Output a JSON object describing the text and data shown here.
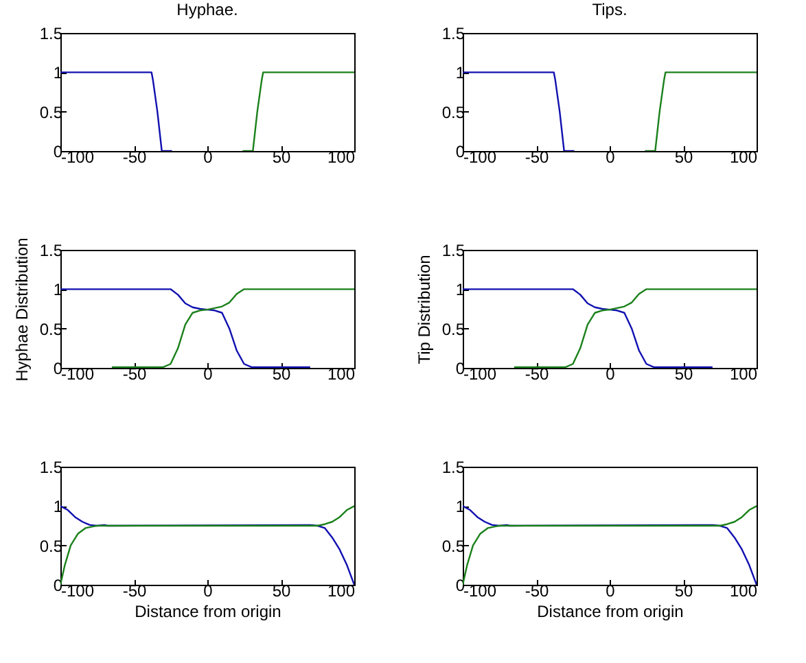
{
  "chart_data": [
    {
      "type": "line",
      "title": "Hyphae.",
      "xlim": [
        -100,
        100
      ],
      "ylim": [
        0,
        1.5
      ],
      "xticks": [
        -100,
        -50,
        0,
        50,
        100
      ],
      "yticks": [
        0,
        0.5,
        1,
        1.5
      ],
      "grid": false,
      "series": [
        {
          "color": "#1010b0",
          "x": [
            -100,
            -38,
            -37,
            -34,
            -31,
            -24
          ],
          "values": [
            1,
            1,
            0.9,
            0.5,
            0,
            0
          ]
        },
        {
          "color": "#1a801a",
          "x": [
            24,
            31,
            34,
            37,
            38,
            100
          ],
          "values": [
            0,
            0,
            0.5,
            0.9,
            1,
            1
          ]
        }
      ]
    },
    {
      "type": "line",
      "title": "Tips.",
      "xlim": [
        -100,
        100
      ],
      "ylim": [
        0,
        1.5
      ],
      "xticks": [
        -100,
        -50,
        0,
        50,
        100
      ],
      "yticks": [
        0,
        0.5,
        1,
        1.5
      ],
      "grid": false,
      "series": [
        {
          "color": "#1010b0",
          "x": [
            -100,
            -38,
            -37,
            -34,
            -31,
            -24
          ],
          "values": [
            1,
            1,
            0.9,
            0.5,
            0,
            0
          ]
        },
        {
          "color": "#1a801a",
          "x": [
            24,
            31,
            34,
            37,
            38,
            100
          ],
          "values": [
            0,
            0,
            0.5,
            0.9,
            1,
            1
          ]
        }
      ]
    },
    {
      "type": "line",
      "ylabel": "Hyphae Distribution",
      "xlim": [
        -100,
        100
      ],
      "ylim": [
        0,
        1.5
      ],
      "xticks": [
        -100,
        -50,
        0,
        50,
        100
      ],
      "yticks": [
        0,
        0.5,
        1,
        1.5
      ],
      "grid": false,
      "series": [
        {
          "color": "#1010b0",
          "x": [
            -100,
            -25,
            -20,
            -15,
            -10,
            -5,
            0,
            5,
            10,
            15,
            20,
            25,
            30,
            70
          ],
          "values": [
            1,
            1,
            0.93,
            0.82,
            0.77,
            0.75,
            0.74,
            0.73,
            0.7,
            0.5,
            0.22,
            0.05,
            0.01,
            0.01
          ]
        },
        {
          "color": "#1a801a",
          "x": [
            -65,
            -30,
            -25,
            -20,
            -15,
            -10,
            -5,
            0,
            5,
            10,
            15,
            20,
            25,
            100
          ],
          "values": [
            0.01,
            0.01,
            0.05,
            0.25,
            0.55,
            0.7,
            0.73,
            0.74,
            0.76,
            0.78,
            0.83,
            0.94,
            1,
            1
          ]
        }
      ]
    },
    {
      "type": "line",
      "ylabel": "Tip Distribution",
      "xlim": [
        -100,
        100
      ],
      "ylim": [
        0,
        1.5
      ],
      "xticks": [
        -100,
        -50,
        0,
        50,
        100
      ],
      "yticks": [
        0,
        0.5,
        1,
        1.5
      ],
      "grid": false,
      "series": [
        {
          "color": "#1010b0",
          "x": [
            -100,
            -25,
            -20,
            -15,
            -10,
            -5,
            0,
            5,
            10,
            15,
            20,
            25,
            30,
            70
          ],
          "values": [
            1,
            1,
            0.93,
            0.82,
            0.77,
            0.75,
            0.74,
            0.73,
            0.7,
            0.5,
            0.22,
            0.05,
            0.01,
            0.01
          ]
        },
        {
          "color": "#1a801a",
          "x": [
            -65,
            -30,
            -25,
            -20,
            -15,
            -10,
            -5,
            0,
            5,
            10,
            15,
            20,
            25,
            100
          ],
          "values": [
            0.01,
            0.01,
            0.05,
            0.25,
            0.55,
            0.7,
            0.73,
            0.74,
            0.76,
            0.78,
            0.83,
            0.94,
            1,
            1
          ]
        }
      ]
    },
    {
      "type": "line",
      "xlabel": "Distance from origin",
      "xlim": [
        -100,
        100
      ],
      "ylim": [
        0,
        1.5
      ],
      "xticks": [
        -100,
        -50,
        0,
        50,
        100
      ],
      "yticks": [
        0,
        0.5,
        1,
        1.5
      ],
      "grid": false,
      "series": [
        {
          "color": "#1010b0",
          "x": [
            -100,
            -95,
            -90,
            -85,
            -80,
            -75,
            -70,
            -68,
            70,
            75,
            80,
            85,
            90,
            95,
            100
          ],
          "values": [
            1,
            0.95,
            0.86,
            0.8,
            0.76,
            0.75,
            0.76,
            0.75,
            0.76,
            0.75,
            0.72,
            0.6,
            0.45,
            0.25,
            0
          ]
        },
        {
          "color": "#1a801a",
          "x": [
            -100,
            -97,
            -93,
            -88,
            -83,
            -78,
            -75,
            75,
            80,
            85,
            90,
            95,
            100
          ],
          "values": [
            0,
            0.25,
            0.5,
            0.65,
            0.72,
            0.74,
            0.75,
            0.75,
            0.77,
            0.8,
            0.86,
            0.95,
            1
          ]
        }
      ]
    },
    {
      "type": "line",
      "xlabel": "Distance from origin",
      "xlim": [
        -100,
        100
      ],
      "ylim": [
        0,
        1.5
      ],
      "xticks": [
        -100,
        -50,
        0,
        50,
        100
      ],
      "yticks": [
        0,
        0.5,
        1,
        1.5
      ],
      "grid": false,
      "series": [
        {
          "color": "#1010b0",
          "x": [
            -100,
            -95,
            -90,
            -85,
            -80,
            -75,
            -70,
            -68,
            70,
            75,
            80,
            85,
            90,
            95,
            100
          ],
          "values": [
            1,
            0.95,
            0.86,
            0.8,
            0.76,
            0.75,
            0.76,
            0.75,
            0.76,
            0.75,
            0.72,
            0.6,
            0.45,
            0.25,
            0
          ]
        },
        {
          "color": "#1a801a",
          "x": [
            -100,
            -97,
            -93,
            -88,
            -83,
            -78,
            -75,
            75,
            80,
            85,
            90,
            95,
            100
          ],
          "values": [
            0,
            0.25,
            0.5,
            0.65,
            0.72,
            0.74,
            0.75,
            0.75,
            0.77,
            0.8,
            0.86,
            0.95,
            1
          ]
        }
      ]
    }
  ]
}
